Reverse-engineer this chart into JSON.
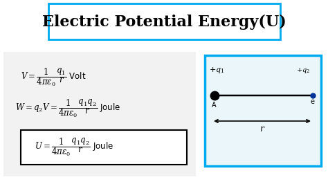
{
  "title": "Electric Potential Energy(U)",
  "bg_color": "#ffffff",
  "left_panel_color": "#f2f2f2",
  "title_box_edge": "#00aaee",
  "title_fontsize": 16,
  "formula1_math": "$V = \\dfrac{1}{4\\pi\\varepsilon_0}\\dfrac{q_1}{r}$",
  "formula1_suffix": " Volt",
  "formula2_math": "$W = q_2 V = \\dfrac{1}{4\\pi\\varepsilon_0}\\dfrac{q_1 q_2}{r}$",
  "formula2_suffix": " Joule",
  "formula3_math": "$U = \\dfrac{1}{4\\pi\\varepsilon_0}\\dfrac{q_1 q_2}{r}$",
  "formula3_suffix": " Joule",
  "diagram_box_edge": "#00aaee",
  "diagram_bg": "#eaf6fa",
  "charge_left_label": "$+q_1$",
  "charge_right_label": "$+q_2$",
  "point_A": "A",
  "label_e": "e",
  "dist_label": "$r$"
}
